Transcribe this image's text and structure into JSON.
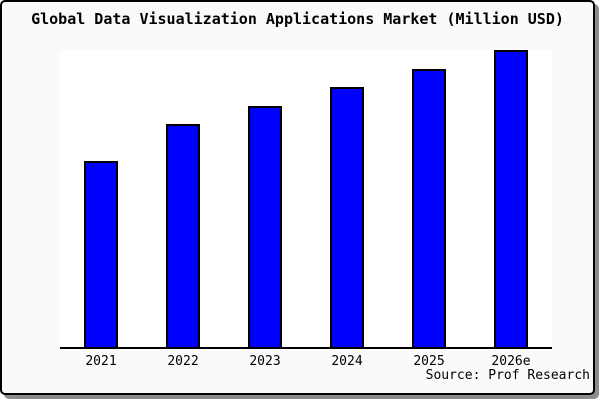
{
  "window": {
    "title": "Global Data Visualization Applications Market (Million USD)"
  },
  "chart_data": {
    "type": "bar",
    "title": "Global Data Visualization Applications Market (Million USD)",
    "categories": [
      "2021",
      "2022",
      "2023",
      "2024",
      "2025",
      "2026e"
    ],
    "values": [
      62.5,
      75.1,
      81.3,
      87.6,
      93.6,
      100
    ],
    "value_unit": "percent of tallest bar; chart shows no y-axis scale or data labels",
    "xlabel": "",
    "ylabel": "",
    "ylim": [
      0,
      100
    ],
    "grid": false,
    "legend": false,
    "bar_color": "#0000ff",
    "bar_border_color": "#000000",
    "source": "Source: Prof Research"
  },
  "colors": {
    "background": "#fafafa",
    "plot_background": "#ffffff",
    "axis": "#000000",
    "frame_border": "#000000",
    "shadow": "#8c8c8c",
    "text": "#000000"
  }
}
